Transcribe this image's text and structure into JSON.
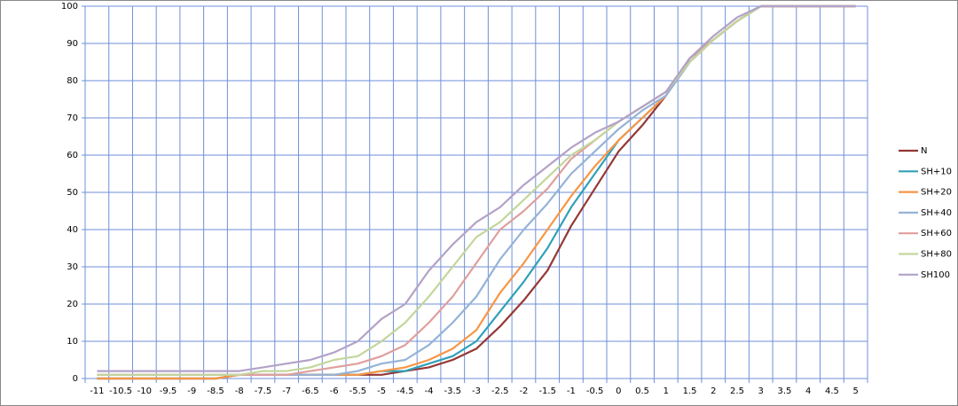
{
  "chart_data": {
    "type": "line",
    "categories": [
      "-11",
      "-10.5",
      "-10",
      "-9.5",
      "-9",
      "-8.5",
      "-8",
      "-7.5",
      "-7",
      "-6.5",
      "-6",
      "-5.5",
      "-5",
      "-4.5",
      "-4",
      "-3.5",
      "-3",
      "-2.5",
      "-2",
      "-1.5",
      "-1",
      "-0.5",
      "0",
      "0.5",
      "1",
      "1.5",
      "2",
      "2.5",
      "3",
      "3.5",
      "4",
      "4.5",
      "5"
    ],
    "ylim": [
      0,
      100
    ],
    "yticks": [
      0,
      10,
      20,
      30,
      40,
      50,
      60,
      70,
      80,
      90,
      100
    ],
    "grid": true,
    "legend": "right",
    "series": [
      {
        "name": "N",
        "color": "#953735",
        "values": [
          0,
          0,
          0,
          0,
          0,
          0,
          1,
          1,
          1,
          1,
          1,
          1,
          1,
          2,
          3,
          5,
          8,
          14,
          21,
          29,
          41,
          51,
          61,
          68,
          76,
          86,
          91,
          96,
          100,
          100,
          100,
          100,
          100
        ]
      },
      {
        "name": "SH+10",
        "color": "#31a0b8",
        "values": [
          0,
          0,
          0,
          0,
          0,
          0,
          1,
          1,
          1,
          1,
          1,
          1,
          2,
          2,
          4,
          6,
          10,
          18,
          26,
          35,
          46,
          55,
          64,
          70,
          76,
          85,
          91,
          96,
          100,
          100,
          100,
          100,
          100
        ]
      },
      {
        "name": "SH+20",
        "color": "#f79646",
        "values": [
          0,
          0,
          0,
          0,
          0,
          0,
          1,
          1,
          1,
          1,
          1,
          1,
          2,
          3,
          5,
          8,
          13,
          23,
          31,
          40,
          49,
          57,
          64,
          70,
          76,
          85,
          91,
          96,
          100,
          100,
          100,
          100,
          100
        ]
      },
      {
        "name": "SH+40",
        "color": "#95b3d7",
        "values": [
          1,
          1,
          1,
          1,
          1,
          1,
          1,
          1,
          1,
          1,
          1,
          2,
          4,
          5,
          9,
          15,
          22,
          32,
          40,
          47,
          55,
          61,
          67,
          72,
          76,
          85,
          91,
          96,
          100,
          100,
          100,
          100,
          100
        ]
      },
      {
        "name": "SH+60",
        "color": "#df9f9d",
        "values": [
          1,
          1,
          1,
          1,
          1,
          1,
          1,
          1,
          1,
          2,
          3,
          4,
          6,
          9,
          15,
          22,
          31,
          40,
          45,
          51,
          59,
          64,
          69,
          73,
          77,
          86,
          91,
          96,
          100,
          100,
          100,
          100,
          100
        ]
      },
      {
        "name": "SH+80",
        "color": "#c3d69b",
        "values": [
          1,
          1,
          1,
          1,
          1,
          1,
          1,
          2,
          2,
          3,
          5,
          6,
          10,
          15,
          22,
          30,
          38,
          42,
          48,
          54,
          60,
          64,
          69,
          73,
          77,
          85,
          91,
          96,
          100,
          100,
          100,
          100,
          100
        ]
      },
      {
        "name": "SH100",
        "color": "#b3a2c7",
        "values": [
          2,
          2,
          2,
          2,
          2,
          2,
          2,
          3,
          4,
          5,
          7,
          10,
          16,
          20,
          29,
          36,
          42,
          46,
          52,
          57,
          62,
          66,
          69,
          73,
          77,
          86,
          92,
          97,
          100,
          100,
          100,
          100,
          100
        ]
      }
    ]
  }
}
